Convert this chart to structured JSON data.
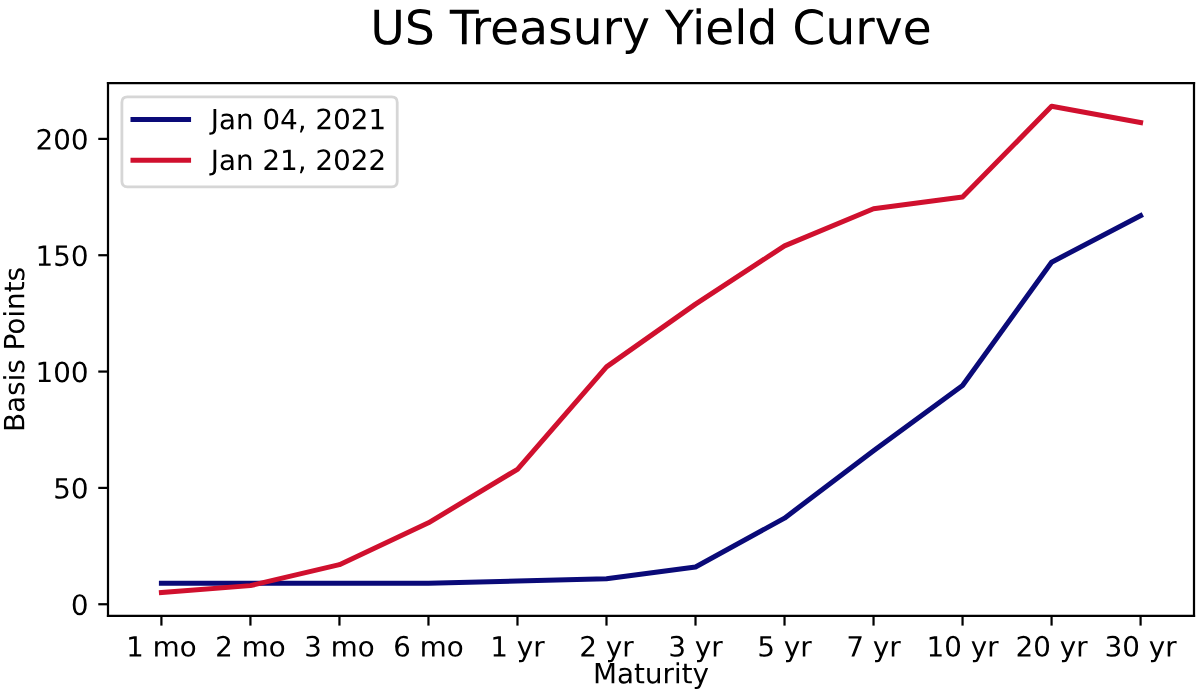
{
  "chart_data": {
    "type": "line",
    "title": "US Treasury Yield Curve",
    "xlabel": "Maturity",
    "ylabel": "Basis Points",
    "categories": [
      "1 mo",
      "2 mo",
      "3 mo",
      "6 mo",
      "1 yr",
      "2 yr",
      "3 yr",
      "5 yr",
      "7 yr",
      "10 yr",
      "20 yr",
      "30 yr"
    ],
    "series": [
      {
        "name": "Jan 04, 2021",
        "color": "#0a0a78",
        "values": [
          9,
          9,
          9,
          9,
          10,
          11,
          16,
          37,
          66,
          94,
          147,
          167
        ]
      },
      {
        "name": "Jan 21, 2022",
        "color": "#d0102e",
        "values": [
          5,
          8,
          17,
          35,
          58,
          102,
          129,
          154,
          170,
          175,
          214,
          207
        ]
      }
    ],
    "ylim": [
      -5,
      224
    ],
    "yticks": [
      0,
      50,
      100,
      150,
      200
    ],
    "grid": false,
    "legend": "top left",
    "marker": "none",
    "line_style": "solid"
  }
}
